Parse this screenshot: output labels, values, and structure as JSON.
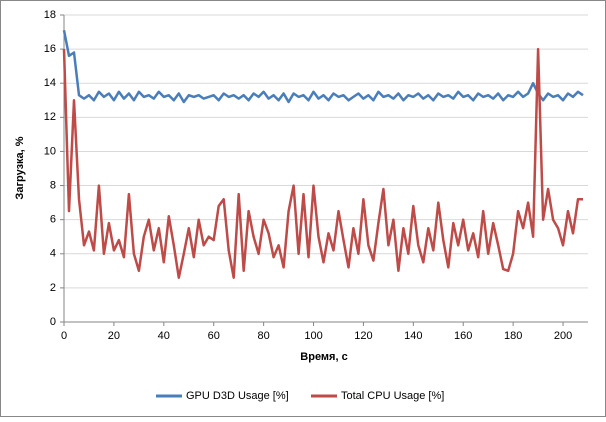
{
  "chart_data": {
    "type": "line",
    "x_label": "Время, с",
    "y_label": "Загрузка, %",
    "x": [
      0,
      2,
      4,
      6,
      8,
      10,
      12,
      14,
      16,
      18,
      20,
      22,
      24,
      26,
      28,
      30,
      32,
      34,
      36,
      38,
      40,
      42,
      44,
      46,
      48,
      50,
      52,
      54,
      56,
      58,
      60,
      62,
      64,
      66,
      68,
      70,
      72,
      74,
      76,
      78,
      80,
      82,
      84,
      86,
      88,
      90,
      92,
      94,
      96,
      98,
      100,
      102,
      104,
      106,
      108,
      110,
      112,
      114,
      116,
      118,
      120,
      122,
      124,
      126,
      128,
      130,
      132,
      134,
      136,
      138,
      140,
      142,
      144,
      146,
      148,
      150,
      152,
      154,
      156,
      158,
      160,
      162,
      164,
      166,
      168,
      170,
      172,
      174,
      176,
      178,
      180,
      182,
      184,
      186,
      188,
      190,
      192,
      194,
      196,
      198,
      200,
      202,
      204,
      206,
      208
    ],
    "series": [
      {
        "name": "GPU D3D Usage [%]",
        "color": "#4a7ebb",
        "values": [
          17.1,
          15.6,
          15.8,
          13.3,
          13.1,
          13.3,
          13.0,
          13.5,
          13.2,
          13.4,
          13.0,
          13.5,
          13.1,
          13.4,
          13.0,
          13.5,
          13.2,
          13.3,
          13.1,
          13.5,
          13.2,
          13.3,
          13.0,
          13.4,
          12.9,
          13.3,
          13.2,
          13.3,
          13.1,
          13.2,
          13.3,
          13.0,
          13.4,
          13.2,
          13.3,
          13.1,
          13.3,
          13.0,
          13.4,
          13.2,
          13.5,
          13.1,
          13.3,
          13.0,
          13.4,
          12.9,
          13.4,
          13.2,
          13.3,
          13.0,
          13.5,
          13.1,
          13.3,
          13.0,
          13.4,
          13.2,
          13.3,
          13.0,
          13.2,
          13.4,
          13.1,
          13.3,
          13.0,
          13.5,
          13.2,
          13.3,
          13.1,
          13.4,
          13.0,
          13.3,
          13.2,
          13.4,
          13.1,
          13.3,
          13.0,
          13.4,
          13.2,
          13.3,
          13.1,
          13.5,
          13.2,
          13.3,
          13.0,
          13.4,
          13.2,
          13.3,
          13.1,
          13.4,
          13.0,
          13.3,
          13.2,
          13.5,
          13.2,
          13.4,
          14.0,
          13.4,
          13.0,
          13.4,
          13.2,
          13.3,
          13.0,
          13.4,
          13.2,
          13.5,
          13.3
        ]
      },
      {
        "name": "Total CPU Usage [%]",
        "color": "#be4b48",
        "values": [
          16.0,
          6.5,
          13.0,
          7.2,
          4.5,
          5.3,
          4.2,
          8.0,
          4.0,
          5.8,
          4.2,
          4.8,
          3.8,
          7.5,
          4.0,
          3.0,
          5.0,
          6.0,
          4.2,
          5.5,
          3.5,
          6.2,
          4.5,
          2.6,
          4.0,
          5.5,
          3.8,
          6.0,
          4.5,
          5.0,
          4.8,
          6.8,
          7.2,
          4.2,
          2.6,
          7.5,
          3.0,
          6.5,
          5.0,
          4.0,
          6.0,
          5.2,
          3.8,
          4.5,
          3.2,
          6.5,
          8.0,
          4.0,
          7.5,
          3.8,
          8.0,
          5.0,
          3.5,
          5.2,
          4.2,
          6.5,
          4.8,
          3.2,
          5.5,
          4.0,
          7.2,
          4.5,
          3.6,
          5.8,
          7.8,
          4.5,
          6.0,
          3.0,
          5.5,
          4.0,
          6.8,
          4.5,
          3.5,
          5.5,
          4.2,
          7.0,
          4.8,
          3.2,
          5.8,
          4.5,
          6.0,
          4.2,
          5.2,
          3.8,
          6.5,
          4.0,
          5.8,
          4.5,
          3.1,
          3.0,
          4.0,
          6.5,
          5.5,
          7.0,
          5.0,
          16.0,
          6.0,
          7.8,
          6.0,
          5.5,
          4.5,
          6.5,
          5.2,
          7.2,
          7.2
        ]
      }
    ],
    "xlim": [
      0,
      210
    ],
    "xticks": [
      0,
      20,
      40,
      60,
      80,
      100,
      120,
      140,
      160,
      180,
      200
    ],
    "ylim": [
      0,
      18
    ],
    "yticks": [
      0,
      2,
      4,
      6,
      8,
      10,
      12,
      14,
      16,
      18
    ],
    "grid": true,
    "legend": "bottom"
  }
}
